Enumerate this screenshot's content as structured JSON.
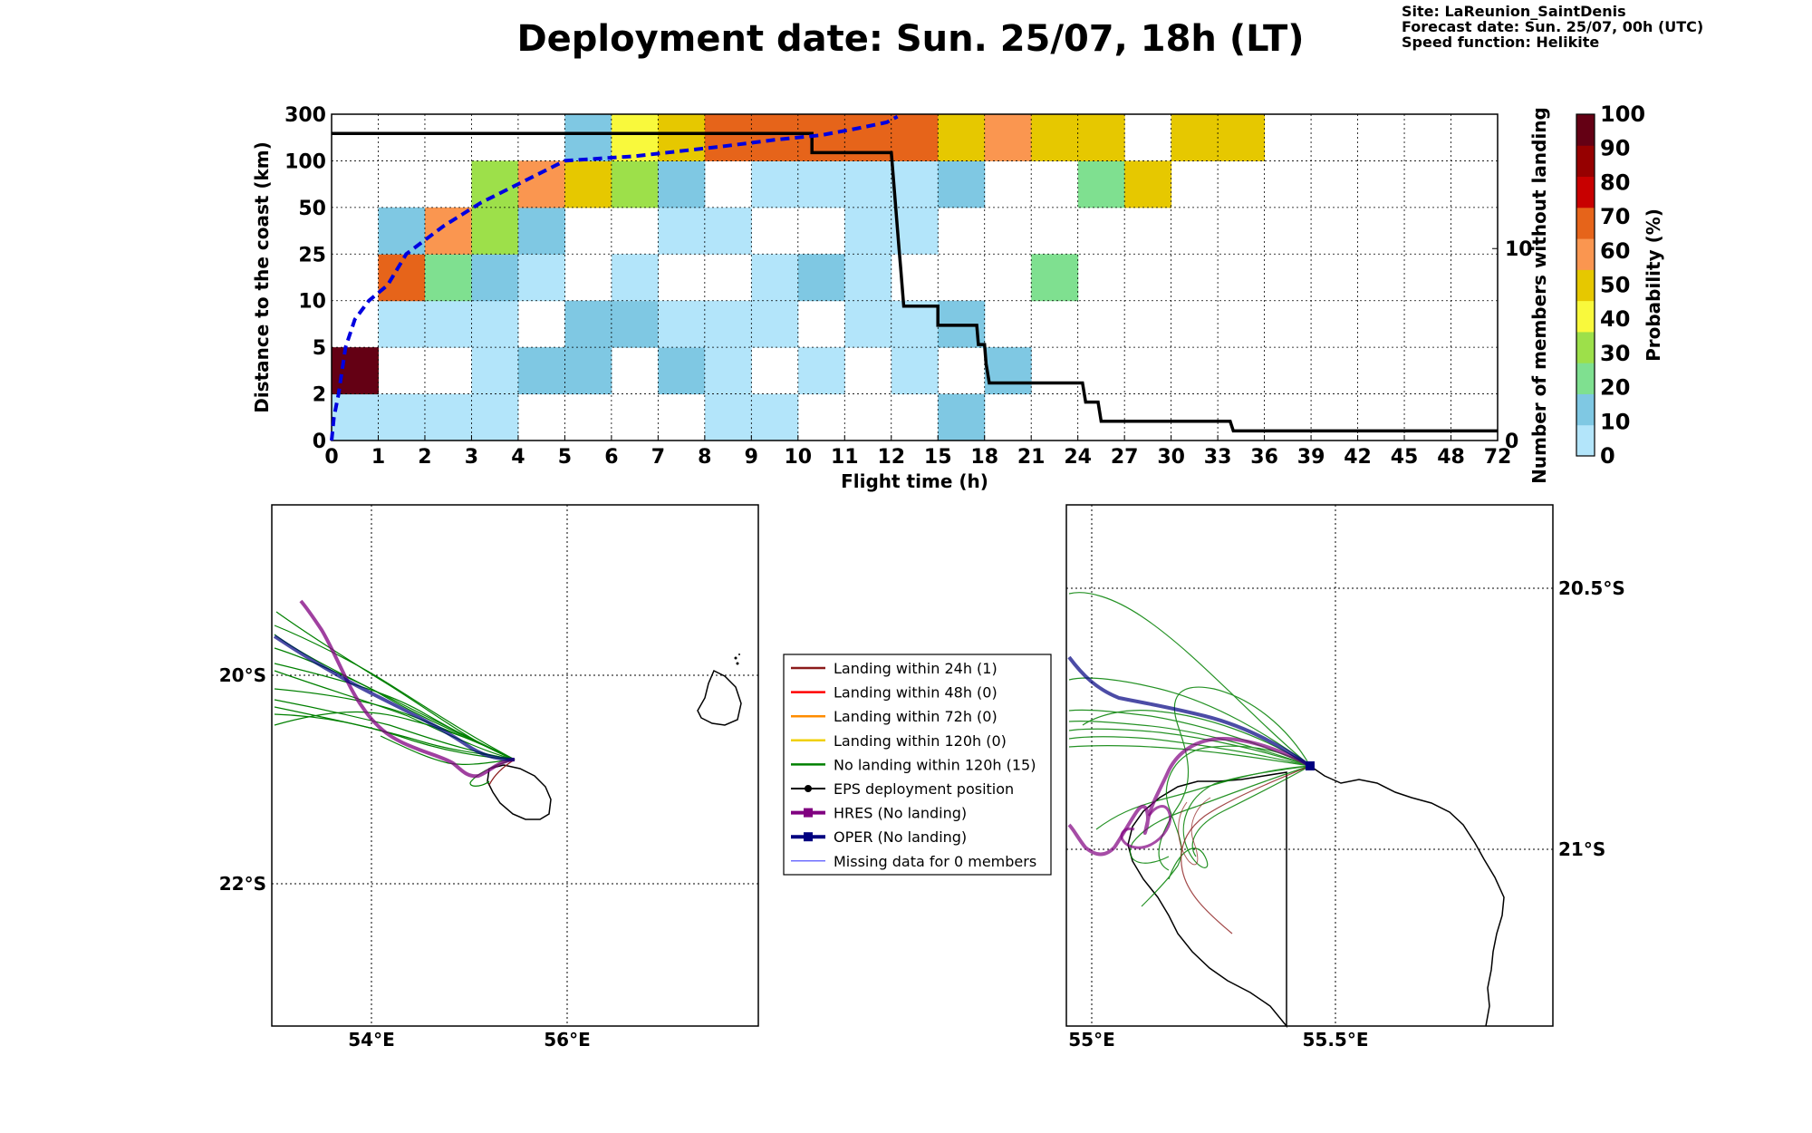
{
  "title": "Deployment date: Sun. 25/07, 18h (LT)",
  "info": {
    "site": "Site: LaReunion_SaintDenis",
    "forecast": "Forecast date: Sun. 25/07, 00h (UTC)",
    "speed": "Speed function: Helikite"
  },
  "chart_data": [
    {
      "type": "heatmap",
      "xlabel": "Flight time (h)",
      "ylabel": "Distance to the coast (km)",
      "y2label": "Number of members without landing",
      "x_ticks": [
        "0",
        "1",
        "2",
        "3",
        "4",
        "5",
        "6",
        "7",
        "8",
        "9",
        "10",
        "11",
        "12",
        "15",
        "18",
        "21",
        "24",
        "27",
        "30",
        "33",
        "36",
        "39",
        "42",
        "45",
        "48",
        "72"
      ],
      "y_ticks": [
        "0",
        "2",
        "5",
        "10",
        "25",
        "50",
        "100",
        "300"
      ],
      "y2_ticks": [
        "0",
        "10"
      ],
      "y2_range": [
        0,
        17
      ],
      "colorbar": {
        "label": "Probability (%)",
        "ticks": [
          "0",
          "10",
          "20",
          "30",
          "40",
          "50",
          "60",
          "70",
          "80",
          "90",
          "100"
        ],
        "colors": [
          "#b3e5fa",
          "#7fc8e3",
          "#7fe090",
          "#9de04a",
          "#f9f93c",
          "#e6c800",
          "#fa9650",
          "#e6641a",
          "#c80000",
          "#960000",
          "#640014"
        ]
      },
      "cells_note_bins": "each row = one distance bin (index 0 = 0-2 km ... 6 = 100-300 km); each column = one flight-time bin; value = colour class index (-1 = empty)",
      "cells": [
        [
          0,
          0,
          0,
          0,
          -1,
          -1,
          -1,
          -1,
          0,
          0,
          -1,
          -1,
          -1,
          1,
          -1,
          -1,
          -1,
          -1,
          -1,
          -1,
          -1,
          -1,
          -1,
          -1,
          -1
        ],
        [
          10,
          -1,
          -1,
          0,
          1,
          1,
          -1,
          1,
          0,
          -1,
          0,
          -1,
          0,
          -1,
          1,
          -1,
          -1,
          -1,
          -1,
          -1,
          -1,
          -1,
          -1,
          -1,
          -1
        ],
        [
          -1,
          0,
          0,
          0,
          -1,
          1,
          1,
          0,
          0,
          0,
          -1,
          0,
          0,
          1,
          -1,
          -1,
          -1,
          -1,
          -1,
          -1,
          -1,
          -1,
          -1,
          -1,
          -1
        ],
        [
          -1,
          7,
          2,
          1,
          0,
          -1,
          0,
          -1,
          -1,
          0,
          1,
          0,
          -1,
          -1,
          -1,
          2,
          -1,
          -1,
          -1,
          -1,
          -1,
          -1,
          -1,
          -1,
          -1
        ],
        [
          -1,
          1,
          6,
          3,
          1,
          -1,
          -1,
          0,
          0,
          -1,
          -1,
          0,
          0,
          -1,
          -1,
          -1,
          -1,
          -1,
          -1,
          -1,
          -1,
          -1,
          -1,
          -1,
          -1
        ],
        [
          -1,
          -1,
          -1,
          3,
          6,
          5,
          3,
          1,
          -1,
          0,
          0,
          0,
          0,
          1,
          -1,
          -1,
          2,
          5,
          -1,
          -1,
          -1,
          -1,
          -1,
          -1,
          -1
        ],
        [
          -1,
          -1,
          -1,
          -1,
          -1,
          1,
          4,
          5,
          7,
          7,
          7,
          7,
          7,
          5,
          6,
          5,
          5,
          -1,
          5,
          5,
          -1,
          -1,
          -1,
          -1,
          -1
        ]
      ],
      "members_step": [
        [
          0,
          16
        ],
        [
          10.3,
          16
        ],
        [
          10.3,
          15
        ],
        [
          12.0,
          15
        ],
        [
          12.1,
          14
        ],
        [
          12.2,
          13
        ],
        [
          12.3,
          12
        ],
        [
          12.4,
          11
        ],
        [
          12.5,
          10
        ],
        [
          12.6,
          9
        ],
        [
          12.7,
          8
        ],
        [
          12.8,
          7
        ],
        [
          15,
          7
        ],
        [
          15,
          6
        ],
        [
          17.5,
          6
        ],
        [
          17.6,
          5
        ],
        [
          18,
          5
        ],
        [
          18.1,
          4
        ],
        [
          18.3,
          3
        ],
        [
          18.6,
          3
        ],
        [
          24.3,
          3
        ],
        [
          24.5,
          2
        ],
        [
          25.3,
          2
        ],
        [
          25.5,
          1
        ],
        [
          33.8,
          1
        ],
        [
          34,
          0.5
        ],
        [
          72,
          0.5
        ]
      ],
      "median_distance_dashed": [
        [
          0,
          0
        ],
        [
          0.05,
          1
        ],
        [
          0.15,
          2
        ],
        [
          0.3,
          5
        ],
        [
          0.5,
          8
        ],
        [
          0.8,
          10
        ],
        [
          1.2,
          15
        ],
        [
          1.6,
          25
        ],
        [
          2.4,
          40
        ],
        [
          3.2,
          55
        ],
        [
          4.2,
          80
        ],
        [
          5.0,
          100
        ],
        [
          6.5,
          120
        ],
        [
          8.3,
          160
        ],
        [
          9.5,
          190
        ],
        [
          10.5,
          210
        ],
        [
          11.3,
          240
        ],
        [
          11.9,
          265
        ],
        [
          12.4,
          290
        ]
      ]
    },
    {
      "type": "map",
      "name": "overview",
      "lon_ticks": [
        "54°E",
        "56°E"
      ],
      "lat_ticks": [
        "20°S",
        "22°S"
      ]
    },
    {
      "type": "map",
      "name": "zoom",
      "lon_ticks": [
        "55°E",
        "55.5°E"
      ],
      "lat_ticks": [
        "20.5°S",
        "21°S"
      ]
    }
  ],
  "legend": [
    {
      "label": "Landing within 24h (1)",
      "color": "#8b1a1a",
      "kind": "line"
    },
    {
      "label": "Landing within 48h (0)",
      "color": "#ff0000",
      "kind": "line"
    },
    {
      "label": "Landing within 72h (0)",
      "color": "#ff8c00",
      "kind": "line"
    },
    {
      "label": "Landing within 120h (0)",
      "color": "#f0d000",
      "kind": "line"
    },
    {
      "label": "No landing within 120h (15)",
      "color": "#008000",
      "kind": "line"
    },
    {
      "label": "EPS deployment position",
      "color": "#000000",
      "kind": "dot"
    },
    {
      "label": "HRES (No landing)",
      "color": "#800080",
      "kind": "square"
    },
    {
      "label": "OPER (No landing)",
      "color": "#000080",
      "kind": "square"
    },
    {
      "label": "Missing data for 0 members",
      "color": "#4040ff",
      "kind": "thin"
    }
  ]
}
